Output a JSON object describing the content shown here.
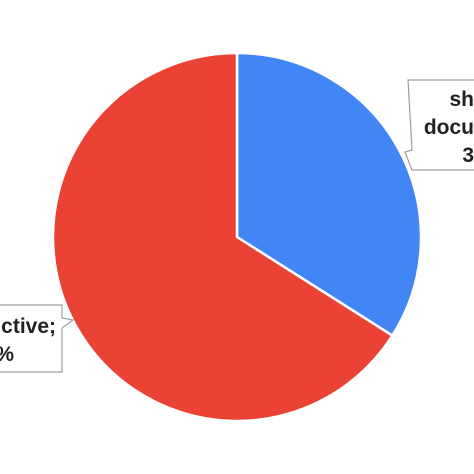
{
  "chart_data": {
    "type": "pie",
    "title": "",
    "slices": [
      {
        "label_lines": [
          "sh",
          "docu",
          "3"
        ],
        "value": 34,
        "color": "#4285f4"
      },
      {
        "label_lines": [
          "ctive;",
          "%"
        ],
        "value": 66,
        "color": "#ea4335"
      }
    ],
    "start_angle_deg": 0,
    "direction": "clockwise",
    "legend": "none",
    "slice_border_color": "#ffffff",
    "callout_border_color": "#9e9e9e"
  }
}
